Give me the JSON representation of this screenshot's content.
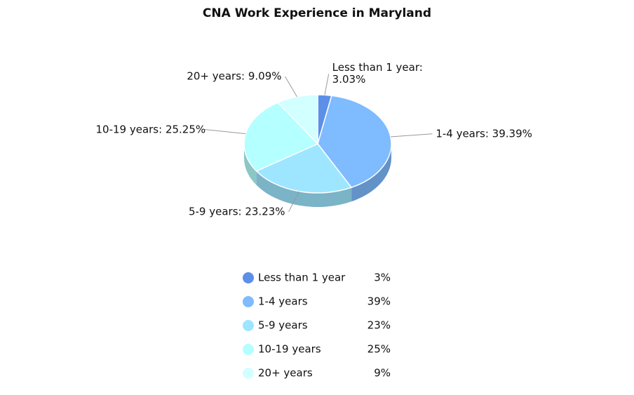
{
  "chart_data": {
    "type": "pie",
    "title": "CNA Work Experience in Maryland",
    "categories": [
      "Less than 1 year",
      "1-4 years",
      "5-9 years",
      "10-19 years",
      "20+ years"
    ],
    "values": [
      3.03,
      39.39,
      23.23,
      25.25,
      9.09
    ],
    "value_labels": [
      "Less than 1 year: 3.03%",
      "1-4 years: 39.39%",
      "5-9 years: 23.23%",
      "10-19 years: 25.25%",
      "20+ years: 9.09%"
    ],
    "legend_value_labels": [
      "3%",
      "39%",
      "23%",
      "25%",
      "9%"
    ],
    "colors": [
      "#5b8fe8",
      "#7fbbff",
      "#9ee6ff",
      "#b4ffff",
      "#d2ffff"
    ],
    "legend": true
  }
}
